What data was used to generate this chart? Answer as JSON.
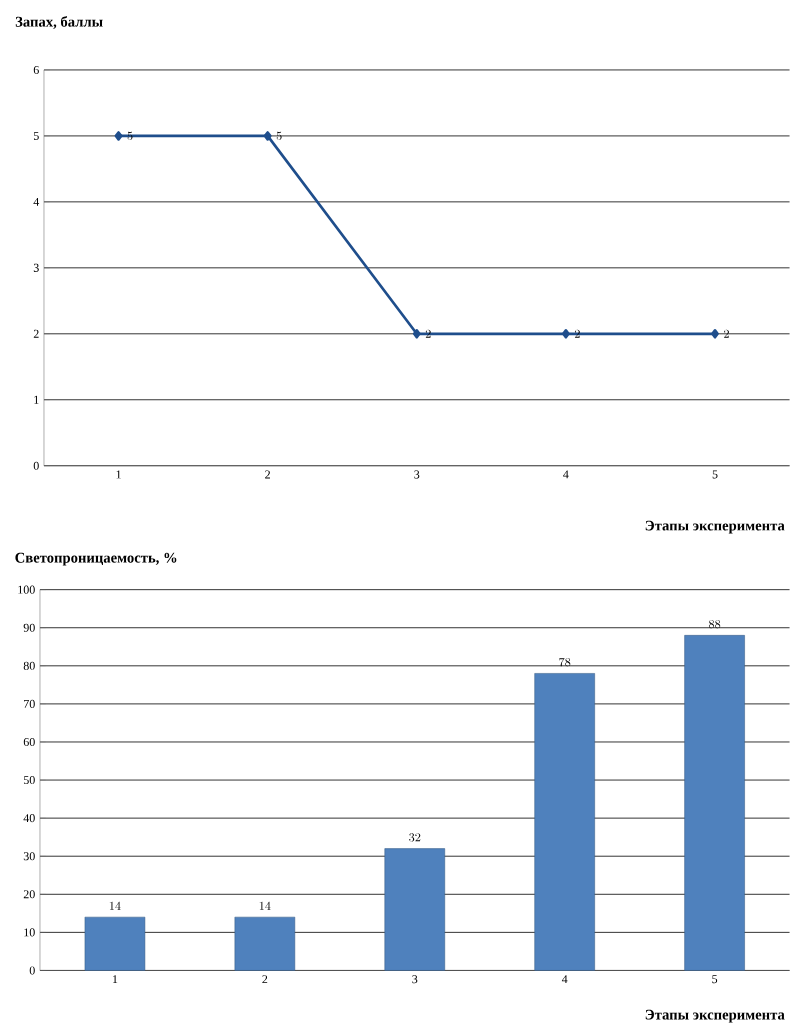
{
  "chart_data": [
    {
      "type": "line",
      "ylabel": "Запах, баллы",
      "xlabel": "Этапы эксперимента",
      "categories": [
        "1",
        "2",
        "3",
        "4",
        "5"
      ],
      "series": [
        {
          "color": "#1f4e8c",
          "values": [
            5,
            5,
            2,
            2,
            2
          ]
        }
      ],
      "ylim": [
        0,
        6
      ],
      "yticks": [
        0,
        1,
        2,
        3,
        4,
        5,
        6
      ],
      "grid": "y",
      "marker": "diamond",
      "data_labels": true
    },
    {
      "type": "bar",
      "ylabel": "Светопроницаемость, %",
      "xlabel": "Этапы эксперимента",
      "categories": [
        "1",
        "2",
        "3",
        "4",
        "5"
      ],
      "values": [
        14,
        14,
        32,
        78,
        88
      ],
      "color": "#4f81bd",
      "ylim": [
        0,
        100
      ],
      "yticks": [
        0,
        10,
        20,
        30,
        40,
        50,
        60,
        70,
        80,
        90,
        100
      ],
      "grid": "y",
      "data_labels": true
    }
  ]
}
